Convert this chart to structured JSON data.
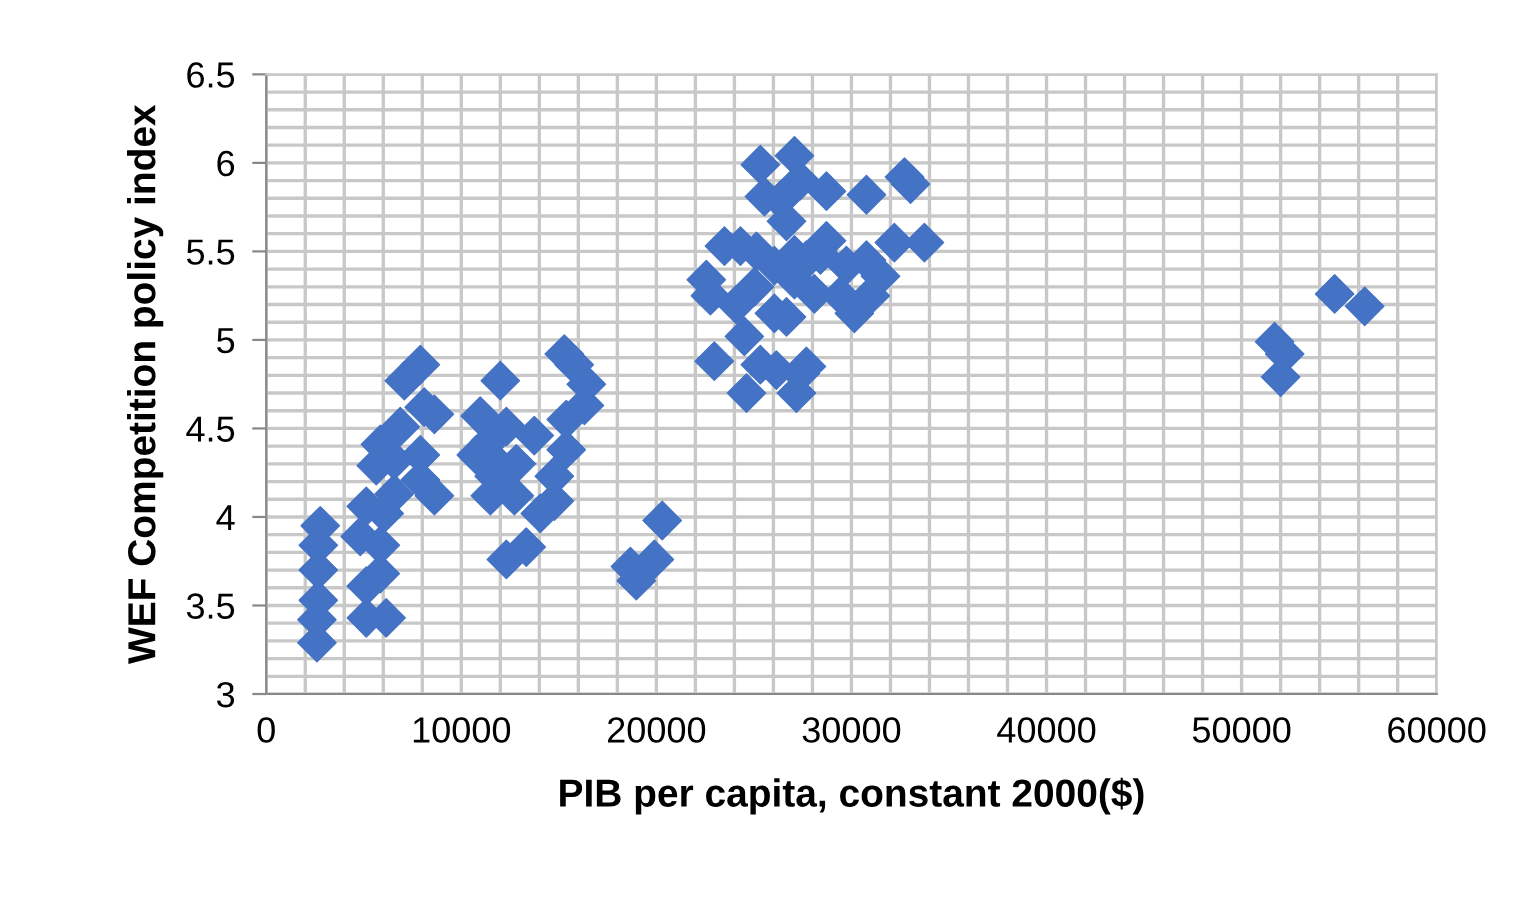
{
  "chart_data": {
    "type": "scatter",
    "xlabel": "PIB per capita, constant 2000($)",
    "ylabel": "WEF Competition policy index",
    "marker": "diamond",
    "grid": true,
    "legend": false,
    "xlim": [
      0,
      60000
    ],
    "xticks": [
      0,
      10000,
      20000,
      30000,
      40000,
      50000,
      60000
    ],
    "ylim": [
      3,
      6.5
    ],
    "yticks": [
      3,
      3.5,
      4,
      4.5,
      5,
      5.5,
      6,
      6.5
    ],
    "series": [
      {
        "color": "#4472c4",
        "x": [
          2770,
          2670,
          2670,
          2670,
          2600,
          2600,
          5130,
          6150,
          5130,
          5850,
          4820,
          5850,
          5130,
          6050,
          6560,
          5640,
          6560,
          5850,
          6870,
          7900,
          8620,
          7900,
          8100,
          8620,
          7080,
          7900,
          12000,
          10970,
          11490,
          12310,
          13740,
          10770,
          11690,
          12820,
          11690,
          12720,
          11490,
          14050,
          14770,
          14770,
          15380,
          15380,
          16310,
          16410,
          15280,
          15790,
          12310,
          13330,
          18670,
          18970,
          19900,
          20300,
          25330,
          27080,
          27380,
          25540,
          26360,
          28720,
          26670,
          30770,
          32720,
          33030,
          32200,
          33740,
          23490,
          24310,
          25130,
          22560,
          22770,
          24100,
          25030,
          26050,
          27080,
          27690,
          28720,
          28410,
          27080,
          28100,
          29740,
          30770,
          31490,
          29440,
          30150,
          30970,
          26050,
          26670,
          24510,
          22970,
          25330,
          26150,
          27690,
          27380,
          24620,
          27180,
          51690,
          52210,
          52000,
          54770,
          56310
        ],
        "values": [
          3.95,
          3.84,
          3.7,
          3.53,
          3.42,
          3.29,
          3.43,
          3.43,
          3.61,
          3.68,
          3.89,
          3.84,
          4.06,
          4.02,
          4.13,
          4.29,
          4.32,
          4.41,
          4.51,
          4.35,
          4.12,
          4.21,
          4.62,
          4.58,
          4.77,
          4.86,
          4.77,
          4.57,
          4.43,
          4.51,
          4.46,
          4.35,
          4.32,
          4.3,
          4.23,
          4.12,
          4.12,
          4.02,
          4.09,
          4.23,
          4.38,
          4.55,
          4.63,
          4.75,
          4.92,
          4.86,
          3.76,
          3.83,
          3.72,
          3.64,
          3.76,
          3.98,
          5.99,
          6.04,
          5.9,
          5.81,
          5.79,
          5.84,
          5.67,
          5.82,
          5.92,
          5.88,
          5.55,
          5.55,
          5.53,
          5.53,
          5.5,
          5.34,
          5.25,
          5.2,
          5.3,
          5.42,
          5.48,
          5.45,
          5.56,
          5.48,
          5.34,
          5.26,
          5.42,
          5.45,
          5.36,
          5.25,
          5.15,
          5.25,
          5.15,
          5.13,
          5.02,
          4.88,
          4.86,
          4.83,
          4.85,
          4.81,
          4.7,
          4.7,
          4.99,
          4.92,
          4.79,
          5.26,
          5.19
        ]
      }
    ]
  }
}
